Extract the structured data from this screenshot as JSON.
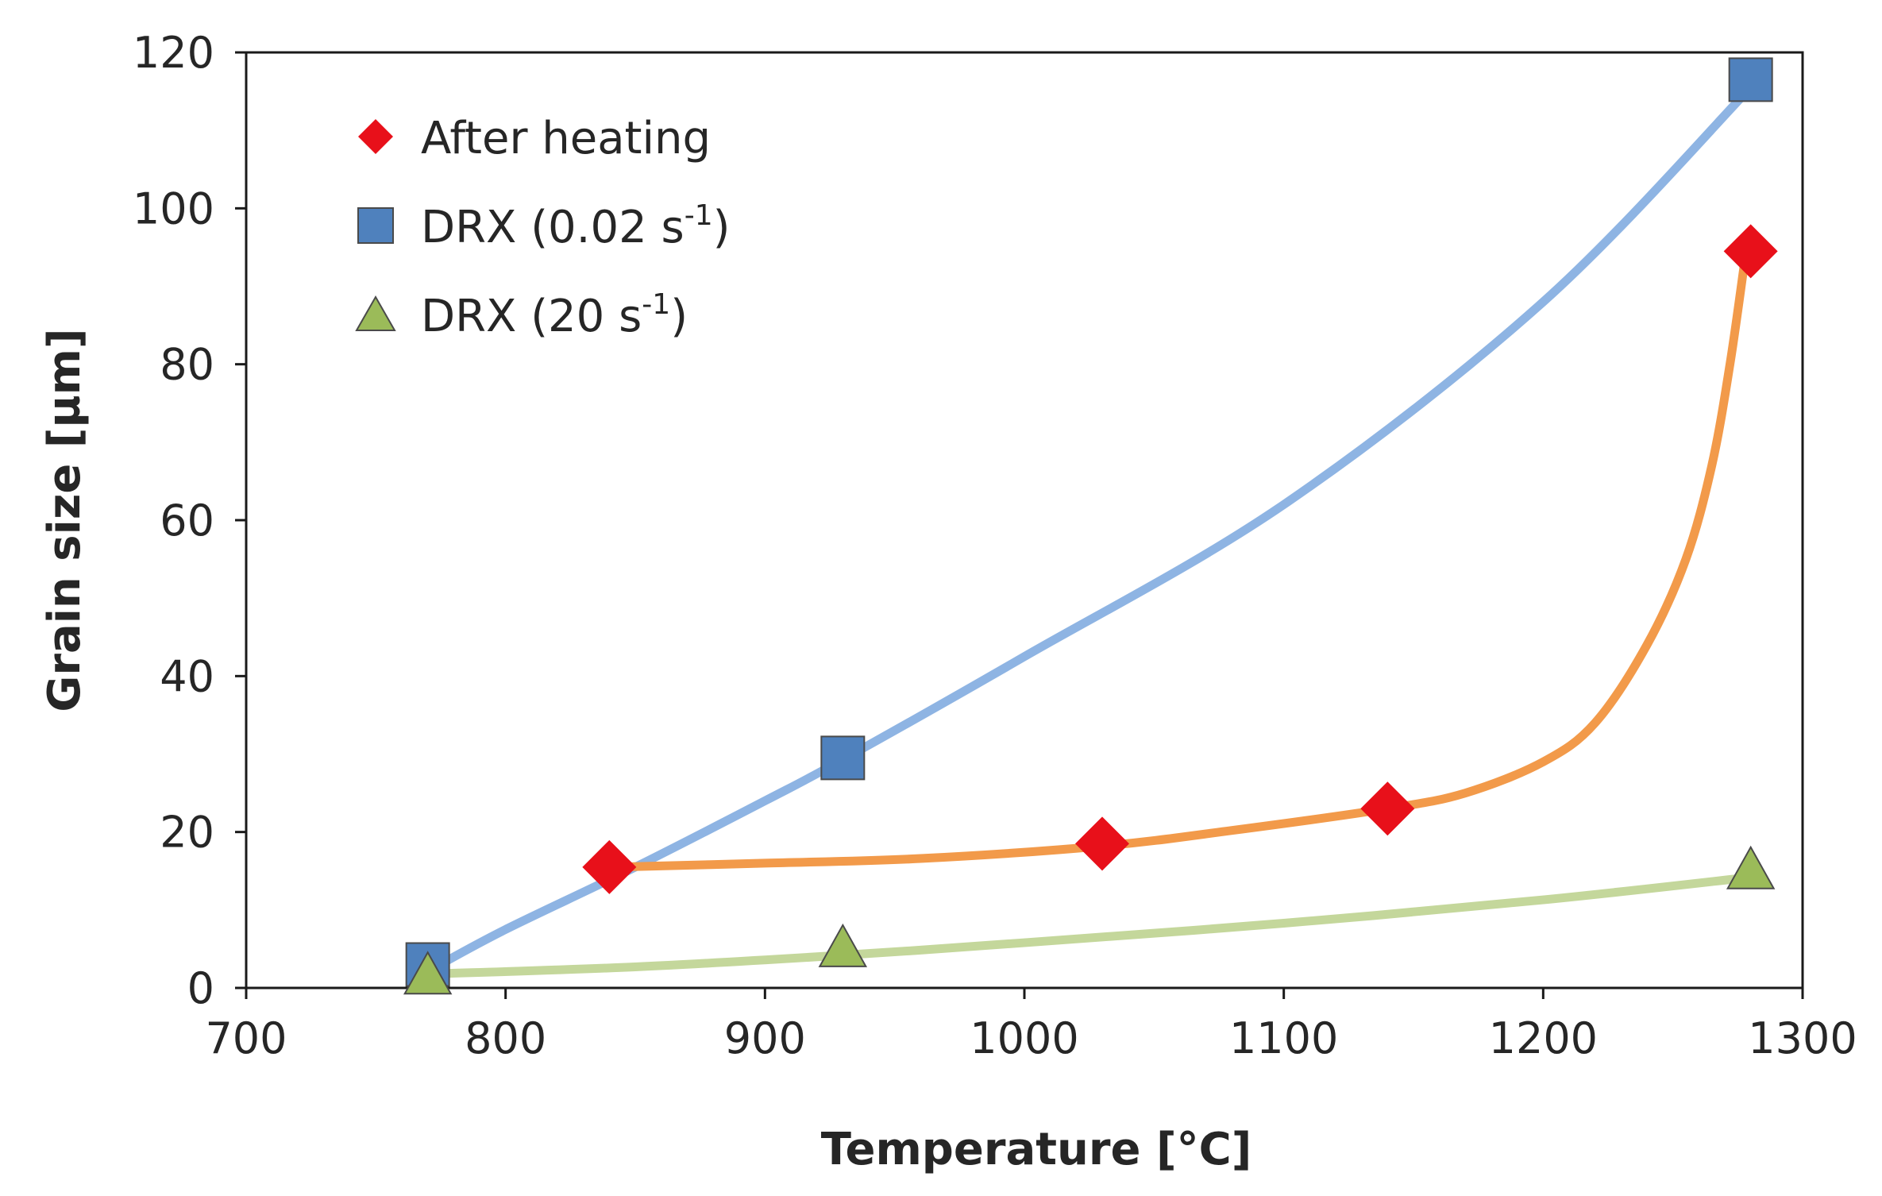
{
  "chart_data": {
    "type": "scatter",
    "title": "",
    "xlabel": "Temperature [°C]",
    "ylabel": "Grain size [µm]",
    "xlim": [
      700,
      1300
    ],
    "ylim": [
      0,
      120
    ],
    "x_ticks": [
      700,
      800,
      900,
      1000,
      1100,
      1200,
      1300
    ],
    "y_ticks": [
      0,
      20,
      40,
      60,
      80,
      100,
      120
    ],
    "grid": false,
    "legend_position": "top-left",
    "series": [
      {
        "name": "After heating",
        "label_text": "After heating",
        "marker": "diamond",
        "marker_color": "#e8101a",
        "curve_color": "#f29a4a",
        "points": [
          [
            840,
            15.5
          ],
          [
            1030,
            18.5
          ],
          [
            1140,
            23
          ],
          [
            1280,
            94.5
          ]
        ],
        "trend": [
          [
            842,
            15.5
          ],
          [
            900,
            16
          ],
          [
            960,
            16.6
          ],
          [
            1030,
            18.2
          ],
          [
            1080,
            20.2
          ],
          [
            1140,
            23
          ],
          [
            1170,
            25
          ],
          [
            1200,
            29
          ],
          [
            1220,
            34
          ],
          [
            1240,
            44
          ],
          [
            1255,
            55
          ],
          [
            1265,
            67
          ],
          [
            1272,
            80
          ],
          [
            1278,
            94
          ]
        ]
      },
      {
        "name": "DRX (0.02 s-1)",
        "label_prefix": "DRX (0.02 s",
        "label_sup": "-1",
        "label_suffix": ")",
        "marker": "square",
        "marker_color": "#4f81bd",
        "curve_color": "#8eb4e3",
        "points": [
          [
            770,
            3
          ],
          [
            930,
            29.5
          ],
          [
            1280,
            116.5
          ]
        ],
        "trend": [
          [
            772,
            2.5
          ],
          [
            800,
            7.5
          ],
          [
            850,
            15.5
          ],
          [
            900,
            24
          ],
          [
            930,
            29.3
          ],
          [
            1000,
            42.5
          ],
          [
            1100,
            62
          ],
          [
            1200,
            88
          ],
          [
            1280,
            115.5
          ]
        ]
      },
      {
        "name": "DRX (20 s-1)",
        "label_prefix": "DRX (20 s",
        "label_sup": "-1",
        "label_suffix": ")",
        "marker": "triangle",
        "marker_color": "#9bbb59",
        "curve_color": "#c4d79b",
        "points": [
          [
            770,
            1.5
          ],
          [
            930,
            5
          ],
          [
            1280,
            15
          ]
        ],
        "trend": [
          [
            772,
            1.8
          ],
          [
            850,
            2.7
          ],
          [
            930,
            4.2
          ],
          [
            1000,
            5.8
          ],
          [
            1100,
            8.3
          ],
          [
            1200,
            11.3
          ],
          [
            1280,
            14.2
          ]
        ]
      }
    ]
  }
}
